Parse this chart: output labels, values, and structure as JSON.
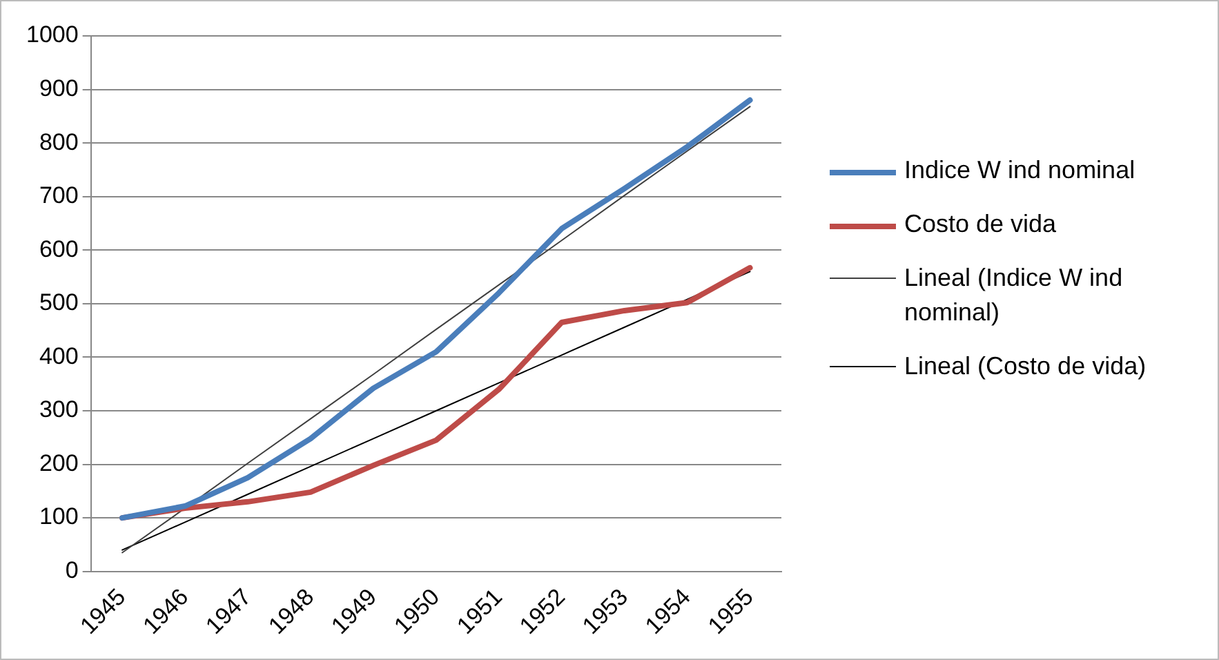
{
  "chart_data": {
    "type": "line",
    "categories": [
      "1945",
      "1946",
      "1947",
      "1948",
      "1949",
      "1950",
      "1951",
      "1952",
      "1953",
      "1954",
      "1955"
    ],
    "series": [
      {
        "name": "Indice W ind nominal",
        "color": "#4a7ebb",
        "values": [
          100,
          122,
          175,
          248,
          342,
          410,
          520,
          640,
          715,
          793,
          880
        ]
      },
      {
        "name": "Costo de vida",
        "color": "#be4b48",
        "values": [
          100,
          118,
          130,
          148,
          198,
          245,
          340,
          465,
          487,
          502,
          567
        ]
      },
      {
        "name": "Lineal (Indice W ind nominal)",
        "color": "#404040",
        "values": [
          35,
          118,
          202,
          285,
          368,
          452,
          535,
          618,
          702,
          785,
          868
        ]
      },
      {
        "name": "Lineal (Costo de vida)",
        "color": "#000000",
        "values": [
          40,
          92,
          144,
          196,
          248,
          300,
          352,
          404,
          456,
          508,
          560
        ]
      }
    ],
    "ylim": [
      0,
      1000
    ],
    "yticks": [
      0,
      100,
      200,
      300,
      400,
      500,
      600,
      700,
      800,
      900,
      1000
    ],
    "grid": "y",
    "legend": "right",
    "marker": "none"
  }
}
